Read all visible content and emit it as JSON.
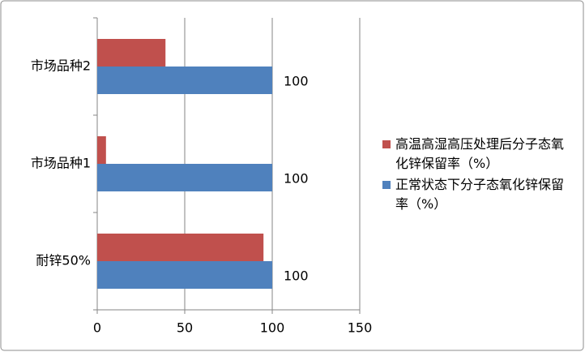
{
  "chart_data": {
    "type": "bar",
    "orientation": "horizontal",
    "categories": [
      "耐锌50%",
      "市场品种1",
      "市场品种2"
    ],
    "series": [
      {
        "name": "高温高湿高压处理后分子态氧化锌保留率（%）",
        "color": "#c0504d",
        "values": [
          95,
          5,
          39
        ]
      },
      {
        "name": "正常状态下分子态氧化锌保留率（%）",
        "color": "#4f81bd",
        "values": [
          100,
          100,
          100
        ],
        "show_labels": true
      }
    ],
    "xlim": [
      0,
      150
    ],
    "xticks": [
      0,
      50,
      100,
      150
    ],
    "grid": true,
    "legend": "right"
  }
}
